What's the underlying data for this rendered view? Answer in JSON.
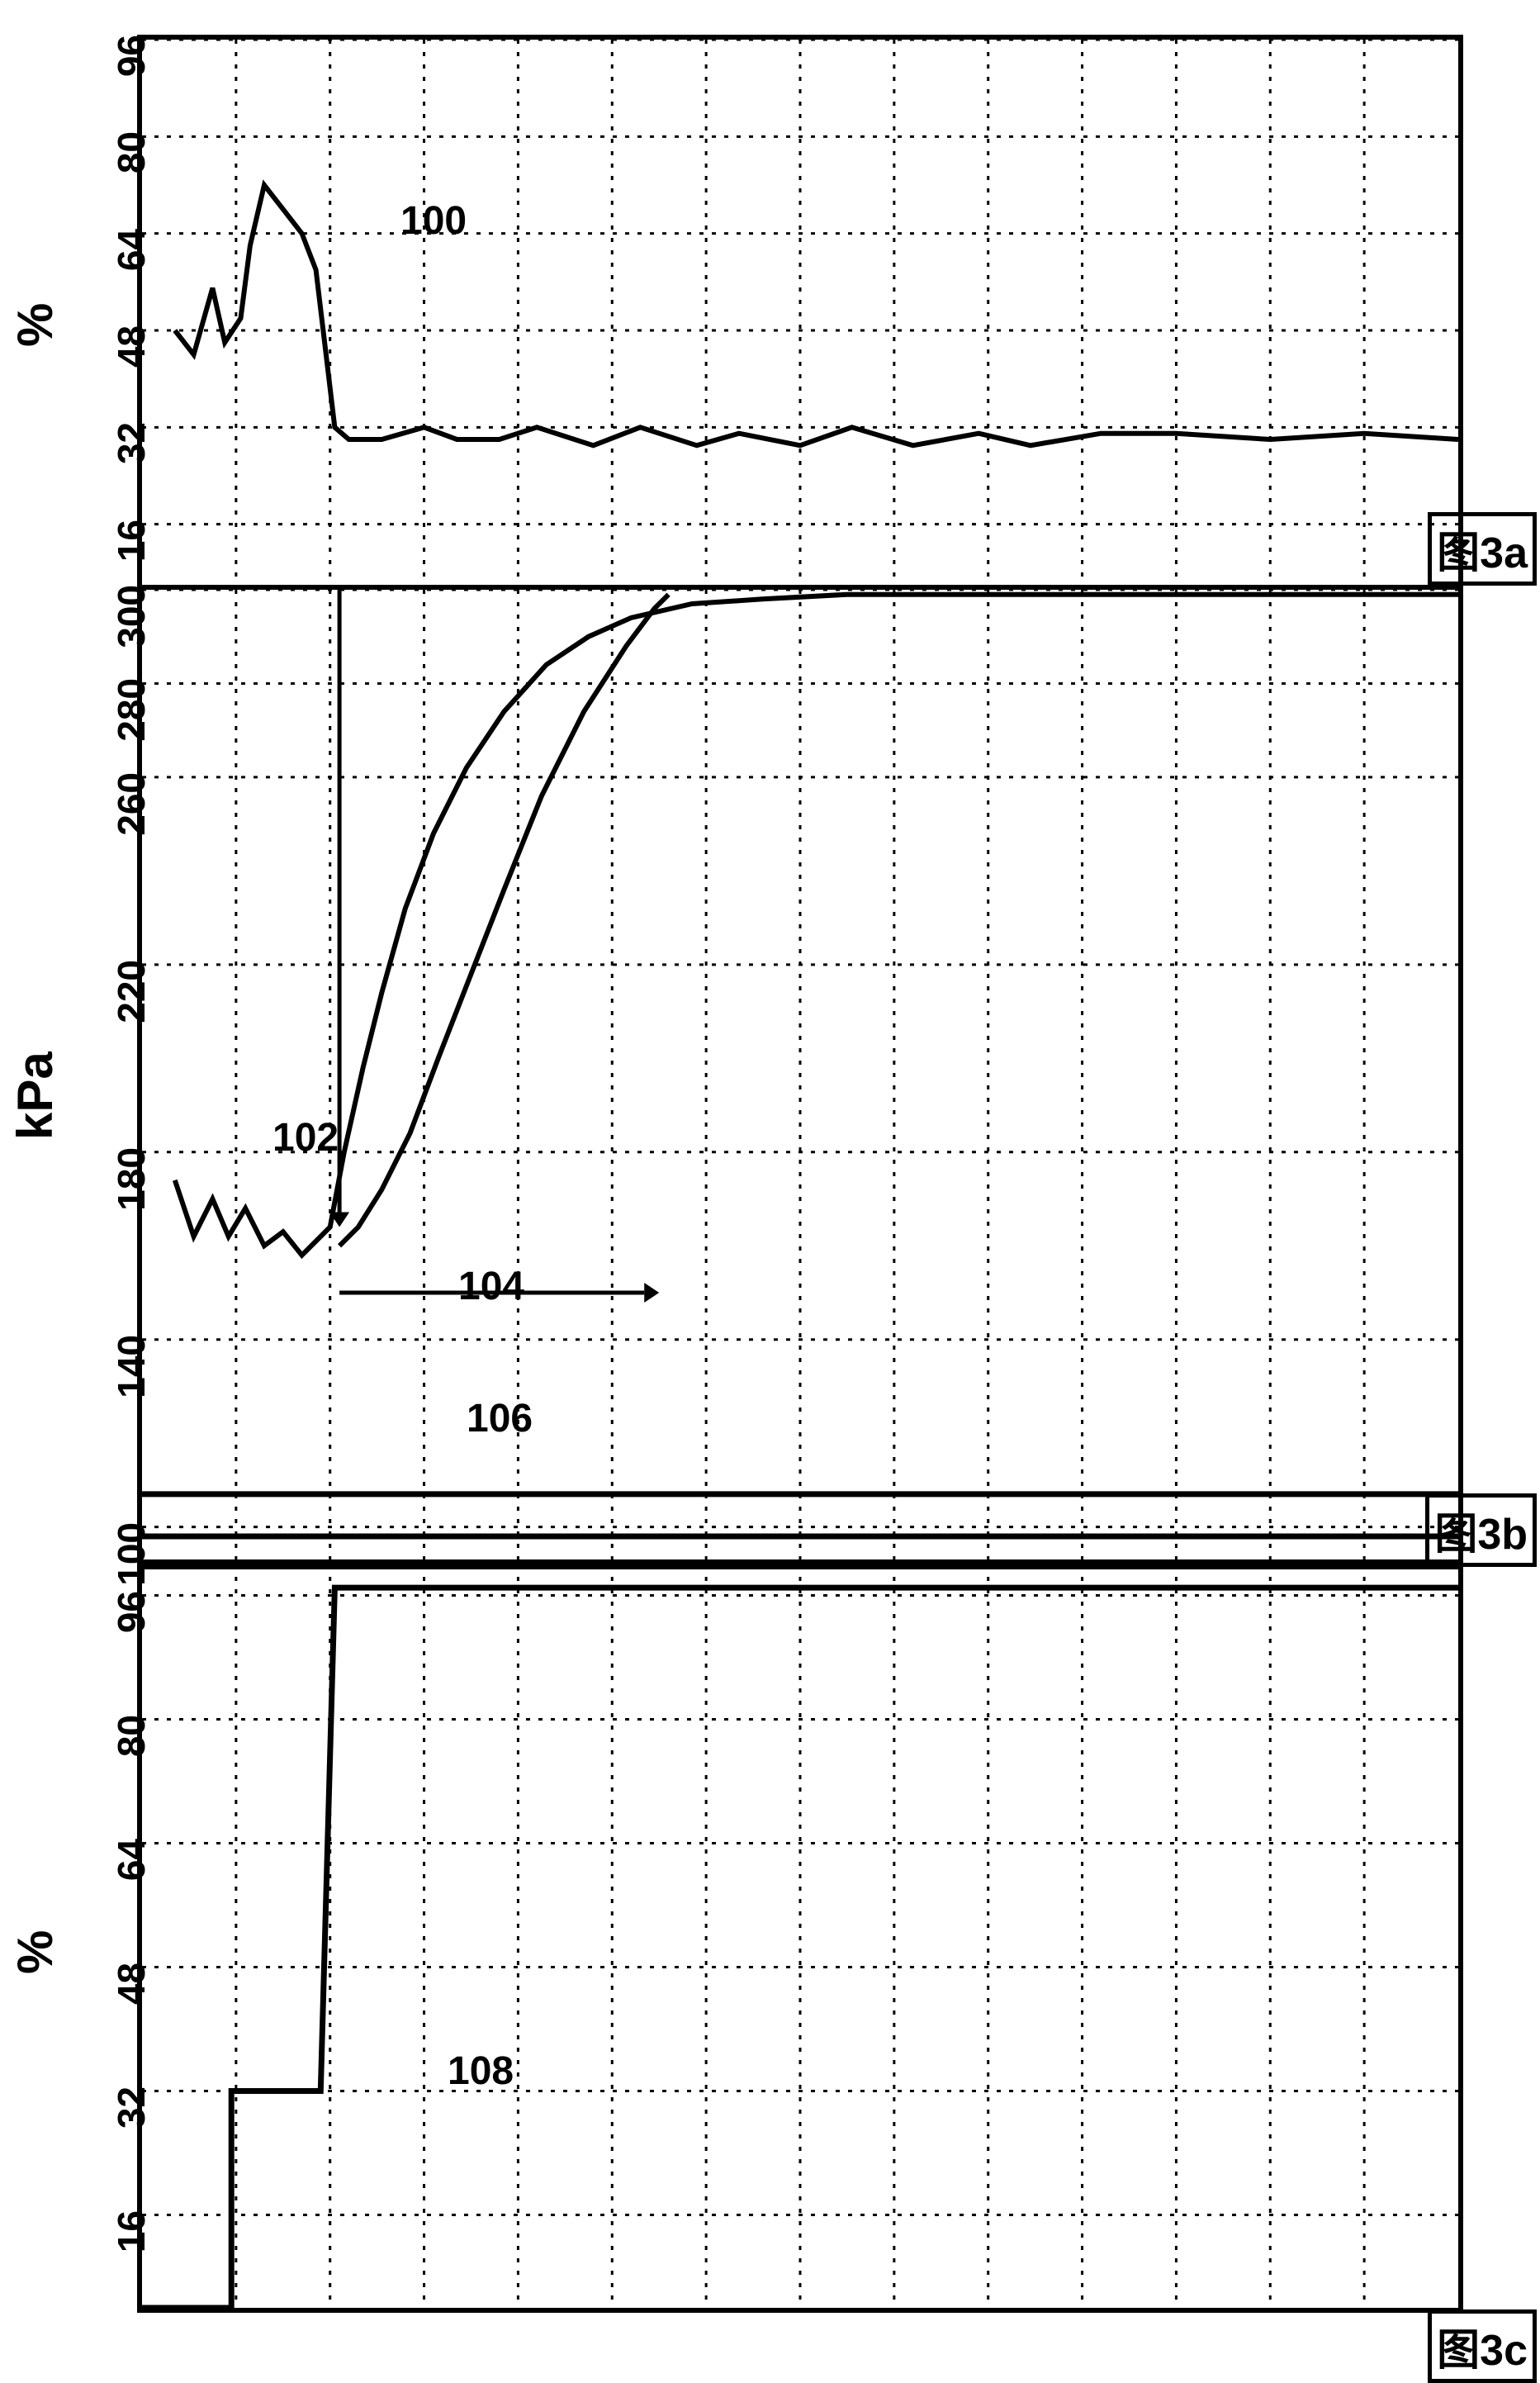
{
  "global": {
    "stroke_color": "#000000",
    "background_color": "#ffffff",
    "grid_dash": "dotted",
    "grid_weight": 3.5,
    "border_weight": 6,
    "series_weight": 6
  },
  "panel_a": {
    "type": "line",
    "ylabel": "%",
    "ylim": [
      6,
      96
    ],
    "yticks": [
      16,
      32,
      48,
      64,
      80,
      96
    ],
    "xlim": [
      0,
      14
    ],
    "x_gridlines": 14,
    "fig_label": "图3a",
    "series": {
      "name": "curve-100",
      "callout": "100",
      "points": [
        [
          0.35,
          48
        ],
        [
          0.55,
          44
        ],
        [
          0.75,
          55
        ],
        [
          0.88,
          46
        ],
        [
          1.05,
          50
        ],
        [
          1.15,
          62
        ],
        [
          1.3,
          72
        ],
        [
          1.5,
          68
        ],
        [
          1.7,
          64
        ],
        [
          1.85,
          58
        ],
        [
          2.05,
          32
        ],
        [
          2.2,
          30
        ],
        [
          2.55,
          30
        ],
        [
          3.0,
          32
        ],
        [
          3.35,
          30
        ],
        [
          3.8,
          30
        ],
        [
          4.2,
          32
        ],
        [
          4.8,
          29
        ],
        [
          5.3,
          32
        ],
        [
          5.9,
          29
        ],
        [
          6.35,
          31
        ],
        [
          7.0,
          29
        ],
        [
          7.55,
          32
        ],
        [
          8.2,
          29
        ],
        [
          8.9,
          31
        ],
        [
          9.45,
          29
        ],
        [
          10.2,
          31
        ],
        [
          11.0,
          31
        ],
        [
          12.0,
          30
        ],
        [
          13.0,
          31
        ],
        [
          14.0,
          30
        ]
      ]
    }
  },
  "panel_b": {
    "type": "line",
    "ylabel": "kPa",
    "ylim": [
      92,
      300
    ],
    "yticks": [
      100,
      140,
      180,
      220,
      260,
      280,
      300
    ],
    "xlim": [
      0,
      14
    ],
    "x_gridlines": 14,
    "fig_label": "图3b",
    "series": [
      {
        "name": "curve-102",
        "callout": "102",
        "points": [
          [
            0.35,
            174
          ],
          [
            0.55,
            162
          ],
          [
            0.75,
            170
          ],
          [
            0.92,
            162
          ],
          [
            1.1,
            168
          ],
          [
            1.3,
            160
          ],
          [
            1.5,
            163
          ],
          [
            1.7,
            158
          ],
          [
            2.0,
            164
          ],
          [
            2.15,
            180
          ],
          [
            2.35,
            198
          ],
          [
            2.55,
            214
          ],
          [
            2.8,
            232
          ],
          [
            3.1,
            248
          ],
          [
            3.45,
            262
          ],
          [
            3.85,
            274
          ],
          [
            4.3,
            284
          ],
          [
            4.75,
            290
          ],
          [
            5.2,
            294
          ],
          [
            5.85,
            297
          ],
          [
            6.6,
            298
          ],
          [
            7.5,
            299
          ],
          [
            8.8,
            299
          ],
          [
            10.5,
            299
          ],
          [
            12.5,
            299
          ],
          [
            14.0,
            299
          ]
        ]
      },
      {
        "name": "curve-104",
        "callout": "104",
        "points": [
          [
            2.1,
            160
          ],
          [
            2.3,
            164
          ],
          [
            2.55,
            172
          ],
          [
            2.85,
            184
          ],
          [
            3.15,
            200
          ],
          [
            3.5,
            218
          ],
          [
            3.85,
            236
          ],
          [
            4.25,
            256
          ],
          [
            4.7,
            274
          ],
          [
            5.15,
            288
          ],
          [
            5.45,
            296
          ],
          [
            5.6,
            299
          ]
        ]
      },
      {
        "name": "curve-106-upper",
        "callout": "106",
        "points": [
          [
            0.0,
            107
          ],
          [
            14.0,
            107
          ]
        ]
      },
      {
        "name": "curve-106-lower",
        "callout": "",
        "points": [
          [
            0.0,
            98
          ],
          [
            14.0,
            98
          ]
        ]
      }
    ],
    "arrows": [
      {
        "name": "arrow-down",
        "x": 2.1,
        "y_from": 300,
        "y_to": 164,
        "dir": "down"
      },
      {
        "name": "arrow-right",
        "x_from": 2.1,
        "x_to": 5.5,
        "y": 150,
        "dir": "right"
      }
    ]
  },
  "panel_c": {
    "type": "line",
    "ylabel": "%",
    "ylim": [
      4,
      100
    ],
    "yticks": [
      16,
      32,
      48,
      64,
      80,
      96
    ],
    "xlim": [
      0,
      14
    ],
    "x_gridlines": 14,
    "fig_label": "图3c",
    "series": {
      "name": "curve-108",
      "callout": "108",
      "points": [
        [
          0.0,
          4
        ],
        [
          0.95,
          4
        ],
        [
          0.95,
          32
        ],
        [
          1.9,
          32
        ],
        [
          2.05,
          97
        ],
        [
          14.0,
          97
        ]
      ]
    }
  }
}
